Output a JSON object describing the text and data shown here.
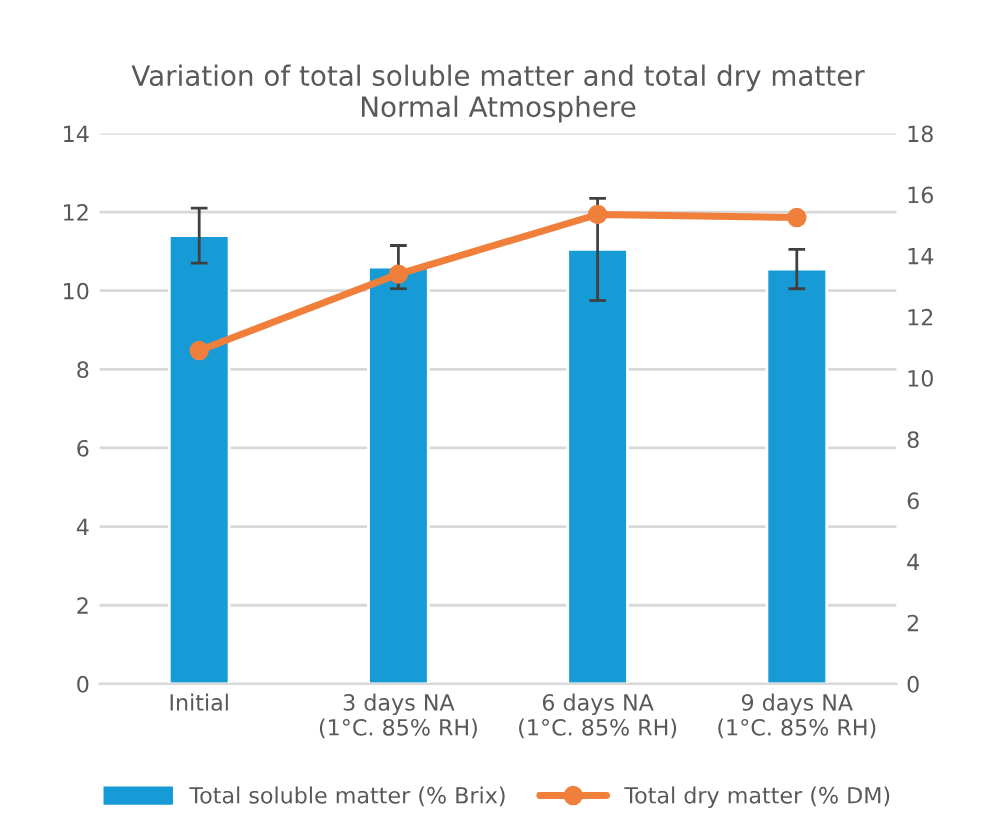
{
  "chart_data": {
    "type": "bar",
    "title": "Variation of total soluble matter and total dry matter\nNormal Atmosphere",
    "categories": [
      "Initial",
      "3 days NA\n(1°C. 85% RH)",
      "6 days NA\n(1°C. 85% RH)",
      "9 days NA\n(1°C. 85% RH)"
    ],
    "series": [
      {
        "name": "Total soluble matter (% Brix)",
        "color": "#179bd7",
        "values": [
          11.4,
          10.6,
          11.05,
          10.55
        ],
        "errors": [
          0.7,
          0.55,
          1.3,
          0.5
        ]
      },
      {
        "name": "Total dry matter (% DM)",
        "type": "line",
        "axis": "y2",
        "color": "#f07f3c",
        "values": [
          10.9,
          13.4,
          15.35,
          15.25
        ],
        "marker": "circle"
      }
    ],
    "ylim": [
      0,
      14
    ],
    "yticks": [
      0,
      2,
      4,
      6,
      8,
      10,
      12,
      14
    ],
    "y2lim": [
      0,
      18
    ],
    "y2ticks": [
      0,
      2,
      4,
      6,
      8,
      10,
      12,
      14,
      16,
      18
    ],
    "grid": "y",
    "legend": "bottom"
  }
}
